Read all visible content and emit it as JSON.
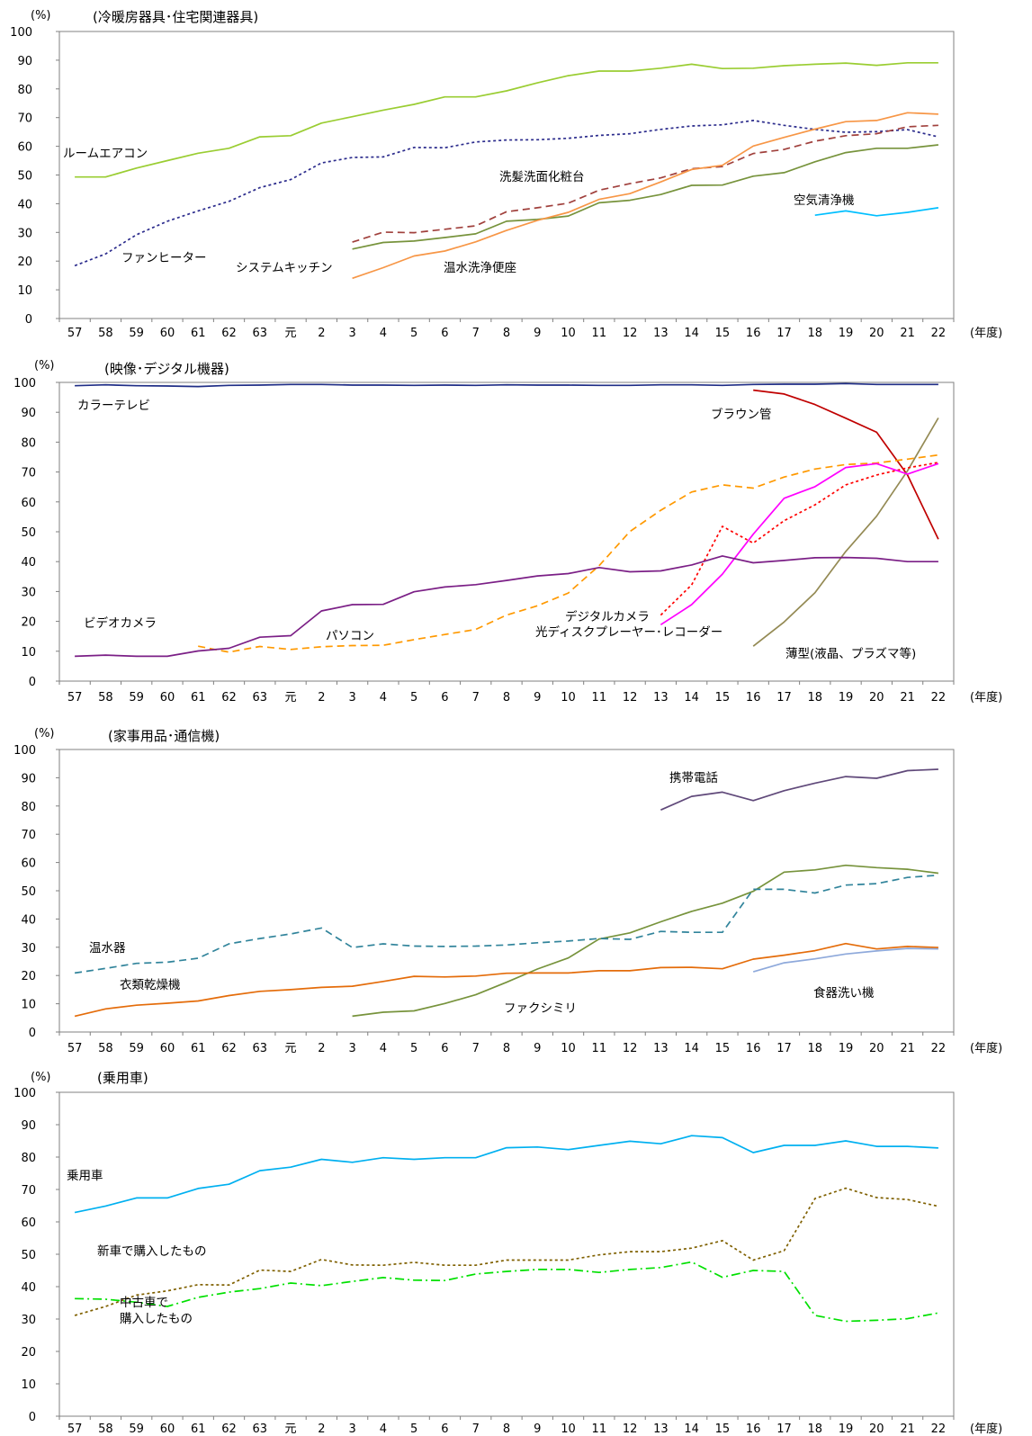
{
  "chart_data": [
    {
      "type": "line",
      "title": "(冷暖房器具･住宅関連器具)",
      "ylabel": "(%)",
      "xlabel": "(年度)",
      "ylim": [
        0,
        100
      ],
      "yticks": [
        "0",
        "10",
        "20",
        "30",
        "40",
        "50",
        "60",
        "70",
        "80",
        "90",
        "100"
      ],
      "categories": [
        "57",
        "58",
        "59",
        "60",
        "61",
        "62",
        "63",
        "元",
        "2",
        "3",
        "4",
        "5",
        "6",
        "7",
        "8",
        "9",
        "10",
        "11",
        "12",
        "13",
        "14",
        "15",
        "16",
        "17",
        "18",
        "19",
        "20",
        "21",
        "22"
      ],
      "series": [
        {
          "name": "ルームエアコン",
          "color": "#9acd32",
          "dash": "solid",
          "values": [
            49.3,
            49.3,
            52.4,
            55.0,
            57.6,
            59.3,
            63.3,
            63.7,
            68.1,
            70.3,
            72.6,
            74.6,
            77.2,
            77.2,
            79.3,
            82.1,
            84.6,
            86.2,
            86.2,
            87.2,
            88.6,
            87.1,
            87.2,
            88.1,
            88.6,
            89.0,
            88.2,
            89.1,
            89.1
          ]
        },
        {
          "name": "ファンヒーター",
          "color": "#2b2b8c",
          "dash": "dotted",
          "values": [
            18.4,
            22.5,
            29.2,
            33.9,
            37.5,
            40.8,
            45.6,
            48.4,
            54.2,
            56.1,
            56.3,
            59.6,
            59.5,
            61.5,
            62.2,
            62.3,
            62.8,
            63.8,
            64.4,
            65.9,
            67.1,
            67.5,
            69.0,
            67.3,
            65.9,
            64.9,
            65.1,
            65.8,
            63.3
          ]
        },
        {
          "name": "洗髪洗面化粧台",
          "color": "#a0403c",
          "dash": "dashed",
          "values": [
            null,
            null,
            null,
            null,
            null,
            null,
            null,
            null,
            null,
            26.6,
            30.1,
            29.9,
            31.1,
            32.3,
            37.2,
            38.6,
            40.2,
            44.7,
            47.0,
            49.0,
            52.2,
            52.9,
            57.5,
            58.9,
            61.8,
            63.7,
            64.4,
            66.8,
            67.3
          ]
        },
        {
          "name": "システムキッチン",
          "color": "#77933c",
          "dash": "solid",
          "values": [
            null,
            null,
            null,
            null,
            null,
            null,
            null,
            null,
            null,
            24.2,
            26.5,
            27.0,
            28.2,
            29.5,
            33.9,
            34.5,
            35.7,
            40.3,
            41.2,
            43.2,
            46.4,
            46.5,
            49.6,
            50.8,
            54.6,
            57.8,
            59.3,
            59.3,
            60.5
          ]
        },
        {
          "name": "温水洗浄便座",
          "color": "#f79646",
          "dash": "solid",
          "values": [
            null,
            null,
            null,
            null,
            null,
            null,
            null,
            null,
            null,
            14.0,
            17.7,
            21.8,
            23.5,
            26.7,
            30.7,
            34.2,
            37.0,
            41.5,
            43.5,
            47.6,
            51.9,
            53.4,
            60.1,
            63.1,
            66.0,
            68.6,
            69.0,
            71.7,
            71.2
          ]
        },
        {
          "name": "空気清浄機",
          "color": "#00bfff",
          "dash": "solid",
          "values": [
            null,
            null,
            null,
            null,
            null,
            null,
            null,
            null,
            null,
            null,
            null,
            null,
            null,
            null,
            null,
            null,
            null,
            null,
            null,
            null,
            null,
            null,
            null,
            null,
            36.0,
            37.5,
            35.8,
            37.0,
            38.6
          ]
        }
      ]
    },
    {
      "type": "line",
      "title": "(映像･デジタル機器)",
      "ylabel": "(%)",
      "xlabel": "(年度)",
      "ylim": [
        0,
        100
      ],
      "yticks": [
        "0",
        "10",
        "20",
        "30",
        "40",
        "50",
        "60",
        "70",
        "80",
        "90",
        "100"
      ],
      "categories": [
        "57",
        "58",
        "59",
        "60",
        "61",
        "62",
        "63",
        "元",
        "2",
        "3",
        "4",
        "5",
        "6",
        "7",
        "8",
        "9",
        "10",
        "11",
        "12",
        "13",
        "14",
        "15",
        "16",
        "17",
        "18",
        "19",
        "20",
        "21",
        "22"
      ],
      "series": [
        {
          "name": "カラーテレビ",
          "color": "#1f2d86",
          "dash": "solid",
          "values": [
            98.9,
            99.2,
            98.9,
            98.8,
            98.6,
            99.0,
            99.1,
            99.3,
            99.3,
            99.1,
            99.1,
            99.0,
            99.1,
            99.0,
            99.2,
            99.1,
            99.1,
            99.0,
            99.0,
            99.2,
            99.2,
            99.0,
            99.3,
            99.4,
            99.4,
            99.6,
            99.3,
            99.3,
            99.3
          ]
        },
        {
          "name": "ブラウン管",
          "color": "#c00000",
          "dash": "solid",
          "values": [
            null,
            null,
            null,
            null,
            null,
            null,
            null,
            null,
            null,
            null,
            null,
            null,
            null,
            null,
            null,
            null,
            null,
            null,
            null,
            null,
            null,
            null,
            97.4,
            96.1,
            92.6,
            88.0,
            83.3,
            69.0,
            47.5
          ]
        },
        {
          "name": "薄型(液晶、プラズマ等)",
          "color": "#948a54",
          "dash": "solid",
          "values": [
            null,
            null,
            null,
            null,
            null,
            null,
            null,
            null,
            null,
            null,
            null,
            null,
            null,
            null,
            null,
            null,
            null,
            null,
            null,
            null,
            null,
            null,
            11.7,
            19.8,
            29.6,
            43.4,
            55.2,
            70.4,
            88.1
          ]
        },
        {
          "name": "パソコン",
          "color": "#ff9900",
          "dash": "dashed",
          "values": [
            null,
            null,
            null,
            null,
            11.7,
            9.7,
            11.6,
            10.6,
            11.5,
            11.9,
            12.0,
            13.9,
            15.6,
            17.3,
            22.1,
            25.2,
            29.5,
            38.6,
            50.1,
            57.2,
            63.3,
            65.7,
            64.6,
            68.3,
            71.0,
            72.5,
            73.0,
            74.3,
            75.7
          ]
        },
        {
          "name": "デジタルカメラ",
          "color": "#ff0000",
          "dash": "dotted",
          "values": [
            null,
            null,
            null,
            null,
            null,
            null,
            null,
            null,
            null,
            null,
            null,
            null,
            null,
            null,
            null,
            null,
            null,
            null,
            null,
            22.1,
            32.2,
            51.8,
            46.2,
            53.7,
            59.0,
            65.7,
            69.0,
            71.4,
            73.2
          ]
        },
        {
          "name": "光ディスクプレーヤー･レコーダー",
          "color": "#ff00ff",
          "dash": "solid",
          "values": [
            null,
            null,
            null,
            null,
            null,
            null,
            null,
            null,
            null,
            null,
            null,
            null,
            null,
            null,
            null,
            null,
            null,
            null,
            null,
            18.9,
            25.6,
            35.8,
            49.2,
            61.2,
            65.1,
            71.5,
            72.8,
            69.3,
            72.8
          ]
        },
        {
          "name": "ビデオカメラ",
          "color": "#7b1f86",
          "dash": "solid",
          "values": [
            8.3,
            8.7,
            8.3,
            8.3,
            10.1,
            11.0,
            14.7,
            15.2,
            23.5,
            25.6,
            25.7,
            29.9,
            31.5,
            32.3,
            33.7,
            35.2,
            36.0,
            38.0,
            36.6,
            36.9,
            38.9,
            41.9,
            39.6,
            40.4,
            41.3,
            41.4,
            41.1,
            40.0,
            40.0
          ]
        }
      ]
    },
    {
      "type": "line",
      "title": "(家事用品･通信機)",
      "ylabel": "(%)",
      "xlabel": "(年度)",
      "ylim": [
        0,
        100
      ],
      "yticks": [
        "0",
        "10",
        "20",
        "30",
        "40",
        "50",
        "60",
        "70",
        "80",
        "90",
        "100"
      ],
      "categories": [
        "57",
        "58",
        "59",
        "60",
        "61",
        "62",
        "63",
        "元",
        "2",
        "3",
        "4",
        "5",
        "6",
        "7",
        "8",
        "9",
        "10",
        "11",
        "12",
        "13",
        "14",
        "15",
        "16",
        "17",
        "18",
        "19",
        "20",
        "21",
        "22"
      ],
      "series": [
        {
          "name": "携帯電話",
          "color": "#60497a",
          "dash": "solid",
          "values": [
            null,
            null,
            null,
            null,
            null,
            null,
            null,
            null,
            null,
            null,
            null,
            null,
            null,
            null,
            null,
            null,
            null,
            null,
            null,
            78.6,
            83.4,
            84.9,
            81.9,
            85.4,
            88.1,
            90.4,
            89.8,
            92.5,
            93.0
          ]
        },
        {
          "name": "ファクシミリ",
          "color": "#77933c",
          "dash": "solid",
          "values": [
            null,
            null,
            null,
            null,
            null,
            null,
            null,
            null,
            null,
            5.6,
            7.0,
            7.5,
            10.1,
            13.2,
            17.6,
            22.3,
            26.2,
            32.9,
            35.1,
            39.0,
            42.7,
            45.6,
            49.8,
            56.6,
            57.4,
            59.0,
            58.2,
            57.6,
            56.2
          ]
        },
        {
          "name": "温水器",
          "color": "#31849b",
          "dash": "dashed",
          "values": [
            20.9,
            22.5,
            24.3,
            24.7,
            26.1,
            31.2,
            33.1,
            34.7,
            36.8,
            29.9,
            31.2,
            30.4,
            30.3,
            30.4,
            30.8,
            31.6,
            32.2,
            33.1,
            32.8,
            35.6,
            35.3,
            35.3,
            50.5,
            50.5,
            49.2,
            52.0,
            52.5,
            54.7,
            55.5
          ]
        },
        {
          "name": "衣類乾燥機",
          "color": "#e46c0a",
          "dash": "solid",
          "values": [
            5.6,
            8.2,
            9.5,
            10.2,
            11.0,
            12.9,
            14.4,
            15.0,
            15.8,
            16.2,
            17.9,
            19.7,
            19.5,
            19.8,
            20.8,
            20.9,
            20.9,
            21.7,
            21.7,
            22.8,
            22.9,
            22.4,
            25.8,
            27.2,
            28.8,
            31.3,
            29.4,
            30.3,
            29.9
          ]
        },
        {
          "name": "食器洗い機",
          "color": "#8ea9db",
          "dash": "solid",
          "values": [
            null,
            null,
            null,
            null,
            null,
            null,
            null,
            null,
            null,
            null,
            null,
            null,
            null,
            null,
            null,
            null,
            null,
            null,
            null,
            null,
            null,
            null,
            21.3,
            24.5,
            25.9,
            27.6,
            28.7,
            29.6,
            29.4
          ]
        }
      ]
    },
    {
      "type": "line",
      "title": "(乗用車)",
      "ylabel": "(%)",
      "xlabel": "(年度)",
      "ylim": [
        0,
        100
      ],
      "yticks": [
        "0",
        "10",
        "20",
        "30",
        "40",
        "50",
        "60",
        "70",
        "80",
        "90",
        "100"
      ],
      "categories": [
        "57",
        "58",
        "59",
        "60",
        "61",
        "62",
        "63",
        "元",
        "2",
        "3",
        "4",
        "5",
        "6",
        "7",
        "8",
        "9",
        "10",
        "11",
        "12",
        "13",
        "14",
        "15",
        "16",
        "17",
        "18",
        "19",
        "20",
        "21",
        "22"
      ],
      "series": [
        {
          "name": "乗用車",
          "color": "#00b0f0",
          "dash": "solid",
          "values": [
            62.9,
            64.9,
            67.4,
            67.4,
            70.3,
            71.6,
            75.8,
            76.9,
            79.3,
            78.4,
            79.8,
            79.3,
            79.8,
            79.8,
            82.9,
            83.1,
            82.3,
            83.6,
            84.9,
            84.1,
            86.6,
            86.0,
            81.4,
            83.6,
            83.6,
            85.0,
            83.3,
            83.3,
            82.8
          ]
        },
        {
          "name": "新車で購入したもの",
          "color": "#7f6000",
          "dash": "dotted",
          "values": [
            31.1,
            33.9,
            37.4,
            38.7,
            40.6,
            40.5,
            45.1,
            44.7,
            48.4,
            46.7,
            46.6,
            47.5,
            46.6,
            46.6,
            48.2,
            48.2,
            48.2,
            49.8,
            50.8,
            50.8,
            51.9,
            54.2,
            48.2,
            51.1,
            67.2,
            70.4,
            67.5,
            66.9,
            64.8
          ]
        },
        {
          "name": "中古車で\n購入したもの",
          "color": "#00e000",
          "dash": "dashdot",
          "values": [
            36.3,
            36.1,
            35.2,
            33.9,
            36.7,
            38.3,
            39.4,
            41.1,
            40.3,
            41.6,
            42.8,
            42.0,
            41.9,
            43.9,
            44.7,
            45.3,
            45.3,
            44.4,
            45.3,
            45.9,
            47.6,
            42.9,
            45.0,
            44.7,
            31.1,
            29.3,
            29.6,
            30.1,
            31.9
          ]
        }
      ]
    }
  ]
}
